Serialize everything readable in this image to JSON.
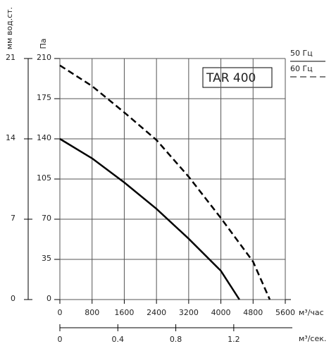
{
  "chart_data": {
    "type": "line",
    "title": "TAR 400",
    "y_label": "Па",
    "y2_label": "мм вод.ст.",
    "x_label": "м³/час",
    "x2_label": "м³/сек.",
    "xlim": [
      0,
      5600
    ],
    "xticks": [
      0,
      800,
      1600,
      2400,
      3200,
      4000,
      4800,
      5600
    ],
    "ylim": [
      0,
      210
    ],
    "yticks": [
      0,
      35,
      70,
      105,
      140,
      175,
      210
    ],
    "y2lim": [
      0,
      21
    ],
    "y2ticks": [
      0,
      7,
      14,
      21
    ],
    "x2lim": [
      0,
      1.5556
    ],
    "x2ticks": [
      0,
      0.4,
      0.8,
      1.2
    ],
    "grid": true,
    "series": [
      {
        "name": "50 Гц",
        "color": "#000000",
        "dash": false,
        "x": [
          0,
          800,
          1600,
          2400,
          3200,
          4000,
          4460
        ],
        "values": [
          140,
          123,
          102,
          79,
          53,
          25,
          0
        ]
      },
      {
        "name": "60 Гц",
        "color": "#000000",
        "dash": true,
        "x": [
          0,
          800,
          1600,
          2400,
          3200,
          4000,
          4800,
          5215
        ],
        "values": [
          204,
          186,
          163,
          139,
          107,
          71,
          33,
          0
        ]
      }
    ]
  }
}
